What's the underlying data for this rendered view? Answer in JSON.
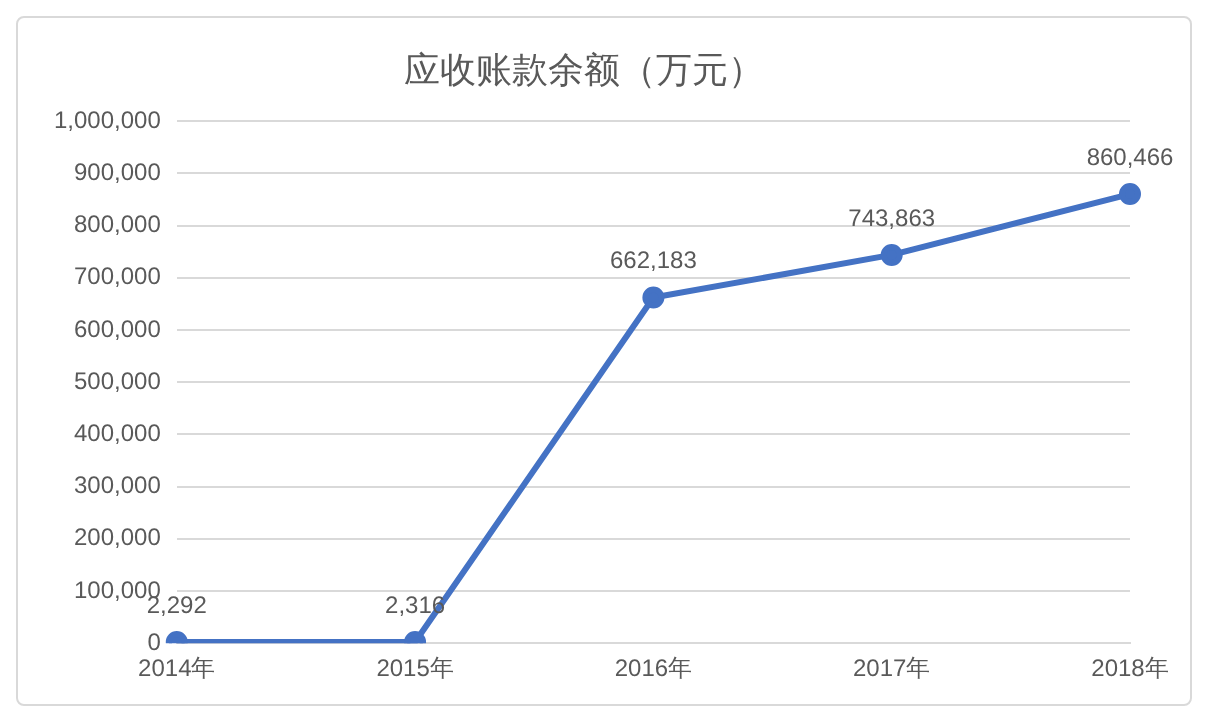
{
  "chart_data": {
    "type": "line",
    "title": "应收账款余额（万元）",
    "categories": [
      "2014年",
      "2015年",
      "2016年",
      "2017年",
      "2018年"
    ],
    "series": [
      {
        "color": "#4472c4",
        "values": [
          2292,
          2316,
          662183,
          743863,
          860466
        ],
        "value_labels": [
          "2,292",
          "2,316",
          "662,183",
          "743,863",
          "860,466"
        ]
      }
    ],
    "ylim": [
      0,
      1000000
    ],
    "yticks": [
      0,
      {
        "value": 100000,
        "label": "100,000"
      },
      {
        "value": 200000,
        "label": "200,000"
      },
      {
        "value": 300000,
        "label": "300,000"
      },
      {
        "value": 400000,
        "label": "400,000"
      },
      {
        "value": 500000,
        "label": "500,000"
      },
      {
        "value": 600000,
        "label": "600,000"
      },
      {
        "value": 700000,
        "label": "700,000"
      },
      {
        "value": 800000,
        "label": "800,000"
      },
      {
        "value": 900000,
        "label": "900,000"
      },
      {
        "value": 1000000,
        "label": "1,000,000"
      }
    ],
    "grid": "y",
    "marker": "circle",
    "line_style": "solid",
    "legend": false
  }
}
